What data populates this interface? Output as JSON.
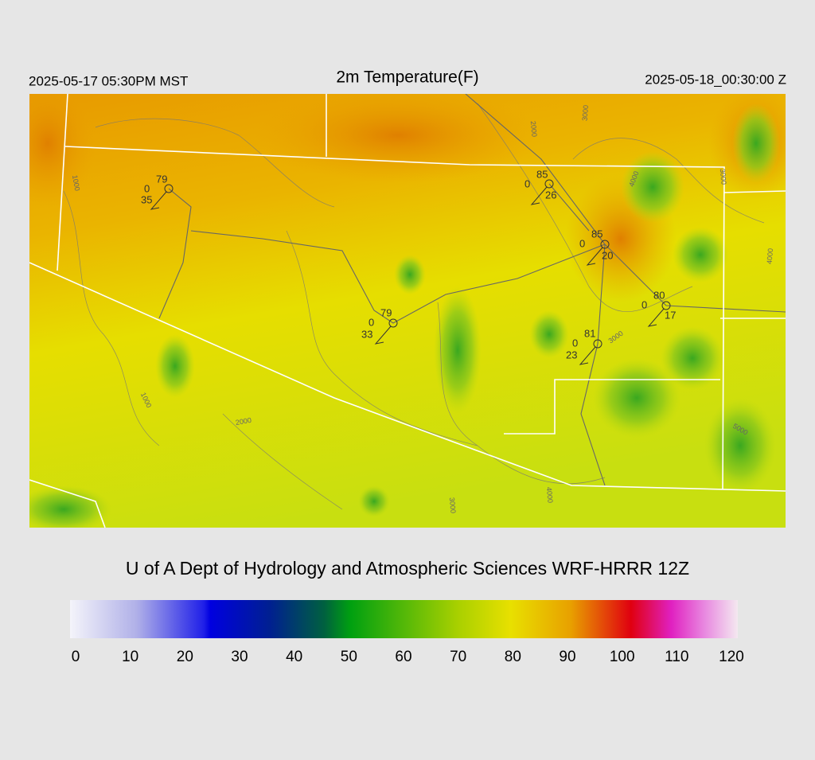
{
  "header": {
    "left": "2025-05-17 05:30PM MST",
    "title": "2m Temperature(F)",
    "right": "2025-05-18_00:30:00 Z"
  },
  "stations": [
    {
      "temperature": 79,
      "direction": 0,
      "speed": 35
    },
    {
      "temperature": 85,
      "direction": 0,
      "speed": 26
    },
    {
      "temperature": 85,
      "direction": 0,
      "speed": 20
    },
    {
      "temperature": 80,
      "direction": 0,
      "speed": 17
    },
    {
      "temperature": 79,
      "direction": 0,
      "speed": 33
    },
    {
      "temperature": 81,
      "direction": 0,
      "speed": 23
    }
  ],
  "contour_labels": [
    1000,
    2000,
    3000,
    4000,
    3000,
    1000,
    2000,
    3000,
    4000,
    5000,
    4000,
    3000
  ],
  "footer": {
    "title": "U of A Dept of Hydrology and Atmospheric Sciences WRF-HRRR 12Z"
  },
  "colorbar": {
    "ticks": [
      0,
      10,
      20,
      30,
      40,
      50,
      60,
      70,
      80,
      90,
      100,
      110,
      120
    ]
  }
}
